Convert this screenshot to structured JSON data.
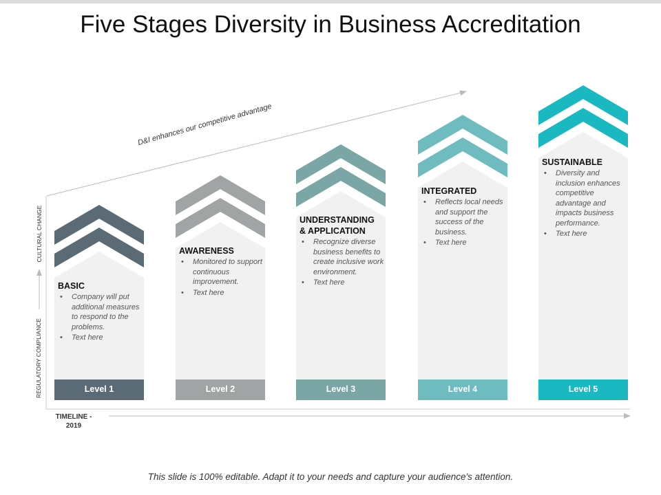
{
  "title": "Five Stages Diversity in Business Accreditation",
  "trend_label": "D&I enhances our competitive advantage",
  "axis": {
    "timeline": "TIMELINE -\n2019",
    "lower": "REGULATORY COMPLIANCE",
    "upper": "CULTURAL CHANGE"
  },
  "stages": [
    {
      "heading": "BASIC",
      "bullets": [
        "Company will put additional measures to respond to the problems.",
        "Text here"
      ],
      "level": "Level 1",
      "color": "#5a6b75"
    },
    {
      "heading": "AWARENESS",
      "bullets": [
        "Monitored to support continuous improvement.",
        "Text here"
      ],
      "level": "Level 2",
      "color": "#a0a4a4"
    },
    {
      "heading": "UNDERSTANDING\n& APPLICATION",
      "bullets": [
        "Recognize diverse business benefits to create inclusive work environment.",
        "Text here"
      ],
      "level": "Level 3",
      "color": "#7aa6a6"
    },
    {
      "heading": "INTEGRATED",
      "bullets": [
        "Reflects local needs and support the success of the business.",
        "Text here"
      ],
      "level": "Level 4",
      "color": "#6fbcc0"
    },
    {
      "heading": "SUSTAINABLE",
      "bullets": [
        "Diversity and inclusion enhances competitive advantage and impacts business performance.",
        "Text here"
      ],
      "level": "Level 5",
      "color": "#1ab8c1"
    }
  ],
  "footer": "This slide is 100% editable. Adapt it to your needs and capture your audience's attention."
}
